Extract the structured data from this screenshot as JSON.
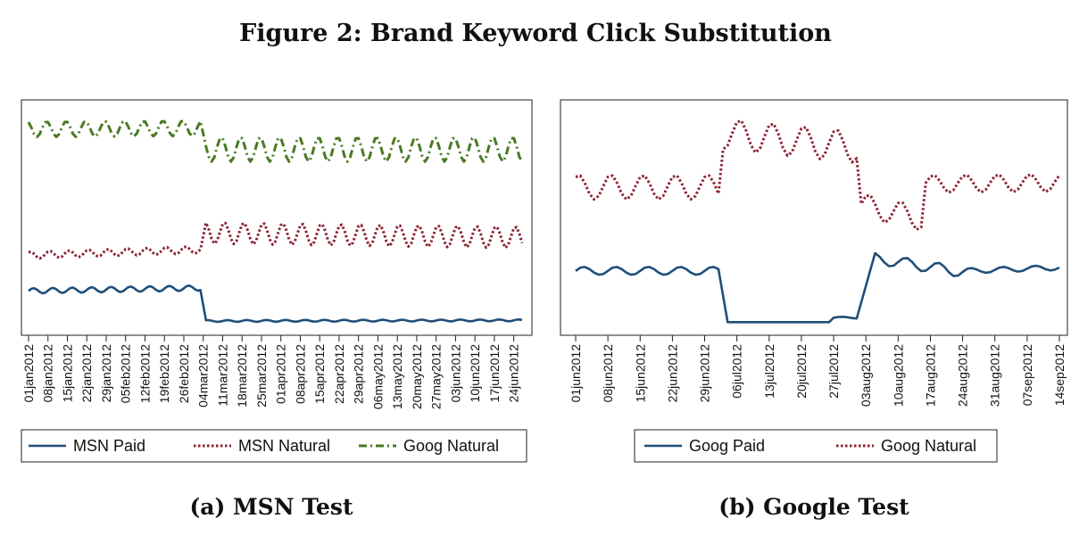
{
  "figure": {
    "title": "Figure 2: Brand Keyword Click Substitution"
  },
  "colors": {
    "paid": "#1f4e79",
    "natural_red": "#8b2332",
    "goog_green": "#4a7a23"
  },
  "chart_data": [
    {
      "type": "line",
      "caption": "(a) MSN Test",
      "x_tick_labels": [
        "01jan2012",
        "08jan2012",
        "15jan2012",
        "22jan2012",
        "29jan2012",
        "05feb2012",
        "12feb2012",
        "19feb2012",
        "26feb2012",
        "04mar2012",
        "11mar2012",
        "18mar2012",
        "25mar2012",
        "01apr2012",
        "08apr2012",
        "15apr2012",
        "22apr2012",
        "29apr2012",
        "06may2012",
        "13may2012",
        "20may2012",
        "27may2012",
        "03jun2012",
        "10jun2012",
        "17jun2012",
        "24jun2012"
      ],
      "x_range": [
        "2012-01-01",
        "2012-06-27"
      ],
      "y_range": [
        0,
        100
      ],
      "y_axis_labels": "none",
      "grid": false,
      "legend": {
        "position": "bottom",
        "entries": [
          "MSN Paid",
          "MSN Natural",
          "Goog Natural"
        ]
      },
      "series": [
        {
          "name": "MSN Paid",
          "style": "solid",
          "color": "#1f4e79",
          "segments": [
            {
              "from": "2012-01-01",
              "to": "2012-03-03",
              "base": 17.5,
              "amp": 1.2,
              "trend": 1.3
            },
            {
              "from": "2012-03-05",
              "to": "2012-06-27",
              "base": 4.0,
              "amp": 0.4,
              "trend": 0.3
            }
          ]
        },
        {
          "name": "MSN Natural",
          "style": "dotted",
          "color": "#8b2332",
          "segments": [
            {
              "from": "2012-01-01",
              "to": "2012-03-03",
              "base": 33.5,
              "amp": 1.6,
              "trend": 2.5
            },
            {
              "from": "2012-03-05",
              "to": "2012-06-27",
              "base": 43.5,
              "amp": 4.8,
              "trend": -2.0
            }
          ]
        },
        {
          "name": "Goog Natural",
          "style": "dashdot",
          "color": "#4a7a23",
          "segments": [
            {
              "from": "2012-01-01",
              "to": "2012-03-03",
              "base": 90.0,
              "amp": 3.5,
              "trend": 0.5
            },
            {
              "from": "2012-03-05",
              "to": "2012-06-27",
              "base": 81.0,
              "amp": 5.5,
              "trend": 0.0
            }
          ]
        }
      ]
    },
    {
      "type": "line",
      "caption": "(b) Google Test",
      "x_tick_labels": [
        "01jun2012",
        "08jun2012",
        "15jun2012",
        "22jun2012",
        "29jun2012",
        "06jul2012",
        "13jul2012",
        "20jul2012",
        "27jul2012",
        "03aug2012",
        "10aug2012",
        "17aug2012",
        "24aug2012",
        "31aug2012",
        "07sep2012",
        "14sep2012"
      ],
      "x_range": [
        "2012-06-01",
        "2012-09-14"
      ],
      "y_range": [
        0,
        100
      ],
      "y_axis_labels": "none",
      "grid": false,
      "legend": {
        "position": "bottom",
        "entries": [
          "Goog Paid",
          "Goog Natural"
        ]
      },
      "series": [
        {
          "name": "Goog Paid",
          "style": "solid",
          "color": "#1f4e79",
          "segments": [
            {
              "from": "2012-06-01",
              "to": "2012-07-02",
              "base": 26.5,
              "amp": 1.8,
              "trend": 0.0
            },
            {
              "from": "2012-07-04",
              "to": "2012-07-26",
              "base": 3.5,
              "amp": 0.0,
              "trend": 0.0
            },
            {
              "from": "2012-07-27",
              "to": "2012-08-01",
              "base": 5.5,
              "amp": 0.4,
              "trend": 0.0
            },
            {
              "from": "2012-08-05",
              "to": "2012-08-24",
              "base": 32.0,
              "amp": 2.5,
              "trend": -6.0
            },
            {
              "from": "2012-08-25",
              "to": "2012-09-14",
              "base": 26.5,
              "amp": 1.2,
              "trend": 1.5
            }
          ]
        },
        {
          "name": "Goog Natural",
          "style": "dotted",
          "color": "#8b2332",
          "segments": [
            {
              "from": "2012-06-01",
              "to": "2012-07-02",
              "base": 64.0,
              "amp": 5.5,
              "trend": 0.0
            },
            {
              "from": "2012-07-03",
              "to": "2012-08-01",
              "base": 88.0,
              "amp": 7.0,
              "trend": -6.0
            },
            {
              "from": "2012-08-02",
              "to": "2012-08-15",
              "base": 56.0,
              "amp": 5.5,
              "trend": -6.0
            },
            {
              "from": "2012-08-16",
              "to": "2012-09-14",
              "base": 65.5,
              "amp": 4.0,
              "trend": 0.5
            }
          ]
        }
      ]
    }
  ]
}
